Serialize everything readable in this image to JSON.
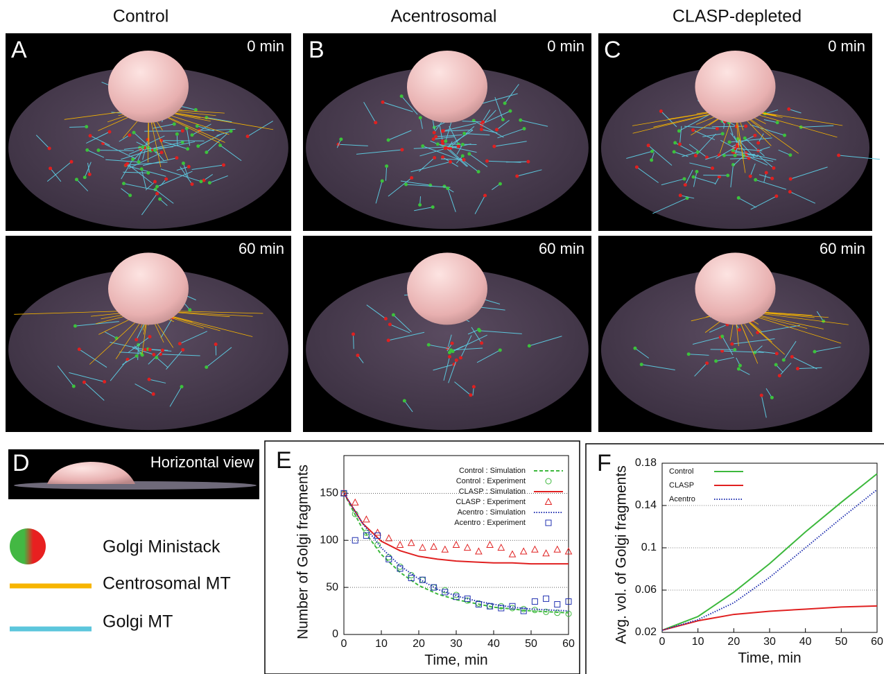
{
  "columns": [
    {
      "title": "Control",
      "panel": "A",
      "top_time": "0 min",
      "bottom_time": "60 min"
    },
    {
      "title": "Acentrosomal",
      "panel": "B",
      "top_time": "0 min",
      "bottom_time": "60 min"
    },
    {
      "title": "CLASP-depleted",
      "panel": "C",
      "top_time": "0 min",
      "bottom_time": "60 min"
    }
  ],
  "horizontal_view": {
    "panel": "D",
    "label": "Horizontal view"
  },
  "legend": [
    {
      "label": "Golgi Ministack"
    },
    {
      "label": "Centrosomal MT",
      "color": "#f7b500"
    },
    {
      "label": "Golgi MT",
      "color": "#5cc6dc"
    }
  ],
  "chart_data": [
    {
      "type": "line",
      "panel": "E",
      "xlabel": "Time, min",
      "ylabel": "Number of Golgi fragments",
      "xlim": [
        0,
        60
      ],
      "xticks": [
        0,
        10,
        20,
        30,
        40,
        50,
        60
      ],
      "ylim": [
        0,
        190
      ],
      "yticks": [
        0,
        50,
        100,
        150
      ],
      "grid": true,
      "legend": "top-right",
      "series": [
        {
          "name": "Control : Simulation",
          "color": "#3cb83c",
          "kind": "line",
          "dash": "dashed",
          "x": [
            0,
            5,
            10,
            15,
            20,
            25,
            30,
            35,
            40,
            45,
            50,
            55,
            60
          ],
          "values": [
            150,
            112,
            85,
            66,
            52,
            43,
            37,
            33,
            29,
            27,
            25,
            24,
            23
          ]
        },
        {
          "name": "Control : Experiment",
          "color": "#3cb83c",
          "kind": "scatter",
          "marker": "circle",
          "x": [
            0,
            3,
            6,
            9,
            12,
            15,
            18,
            21,
            24,
            27,
            30,
            33,
            36,
            39,
            42,
            45,
            48,
            51,
            54,
            57,
            60
          ],
          "values": [
            150,
            128,
            108,
            95,
            82,
            72,
            63,
            58,
            50,
            47,
            42,
            36,
            33,
            30,
            30,
            28,
            27,
            26,
            24,
            23,
            22
          ]
        },
        {
          "name": "CLASP : Simulation",
          "color": "#e02020",
          "kind": "line",
          "dash": "solid",
          "x": [
            0,
            5,
            10,
            15,
            20,
            25,
            30,
            35,
            40,
            45,
            50,
            55,
            60
          ],
          "values": [
            150,
            118,
            99,
            89,
            83,
            80,
            78,
            77,
            76,
            76,
            75,
            75,
            75
          ]
        },
        {
          "name": "CLASP : Experiment",
          "color": "#e02020",
          "kind": "scatter",
          "marker": "triangle",
          "x": [
            0,
            3,
            6,
            9,
            12,
            15,
            18,
            21,
            24,
            27,
            30,
            33,
            36,
            39,
            42,
            45,
            48,
            51,
            54,
            57,
            60
          ],
          "values": [
            150,
            140,
            122,
            108,
            102,
            95,
            97,
            92,
            93,
            90,
            95,
            92,
            88,
            95,
            92,
            85,
            88,
            90,
            86,
            90,
            88
          ]
        },
        {
          "name": "Acentro : Simulation",
          "color": "#2030b0",
          "kind": "line",
          "dash": "dotted",
          "x": [
            0,
            5,
            10,
            15,
            20,
            25,
            30,
            35,
            40,
            45,
            50,
            55,
            60
          ],
          "values": [
            150,
            118,
            92,
            73,
            59,
            48,
            41,
            36,
            32,
            29,
            27,
            26,
            25
          ]
        },
        {
          "name": "Acentro : Experiment",
          "color": "#2030b0",
          "kind": "scatter",
          "marker": "square",
          "x": [
            0,
            3,
            6,
            9,
            12,
            15,
            18,
            21,
            24,
            27,
            30,
            33,
            36,
            39,
            42,
            45,
            48,
            51,
            54,
            57,
            60
          ],
          "values": [
            150,
            100,
            105,
            105,
            80,
            70,
            60,
            58,
            50,
            45,
            40,
            38,
            32,
            30,
            28,
            30,
            25,
            35,
            38,
            32,
            35
          ]
        }
      ]
    },
    {
      "type": "line",
      "panel": "F",
      "xlabel": "Time, min",
      "ylabel": "Avg. vol. of Golgi fragments",
      "xlim": [
        0,
        60
      ],
      "xticks": [
        0,
        10,
        20,
        30,
        40,
        50,
        60
      ],
      "ylim": [
        0.02,
        0.18
      ],
      "yticks": [
        0.02,
        0.06,
        0.1,
        0.14,
        0.18
      ],
      "grid": true,
      "legend": "top-left",
      "series": [
        {
          "name": "Control",
          "color": "#3cb83c",
          "kind": "line",
          "dash": "solid",
          "x": [
            0,
            10,
            20,
            30,
            40,
            50,
            60
          ],
          "values": [
            0.022,
            0.035,
            0.058,
            0.085,
            0.115,
            0.143,
            0.17
          ]
        },
        {
          "name": "CLASP",
          "color": "#e02020",
          "kind": "line",
          "dash": "solid",
          "x": [
            0,
            10,
            20,
            30,
            40,
            50,
            60
          ],
          "values": [
            0.022,
            0.031,
            0.037,
            0.04,
            0.042,
            0.044,
            0.045
          ]
        },
        {
          "name": "Acentro",
          "color": "#2030b0",
          "kind": "line",
          "dash": "dotted",
          "x": [
            0,
            10,
            20,
            30,
            40,
            50,
            60
          ],
          "values": [
            0.022,
            0.032,
            0.048,
            0.072,
            0.1,
            0.128,
            0.155
          ]
        }
      ]
    }
  ]
}
